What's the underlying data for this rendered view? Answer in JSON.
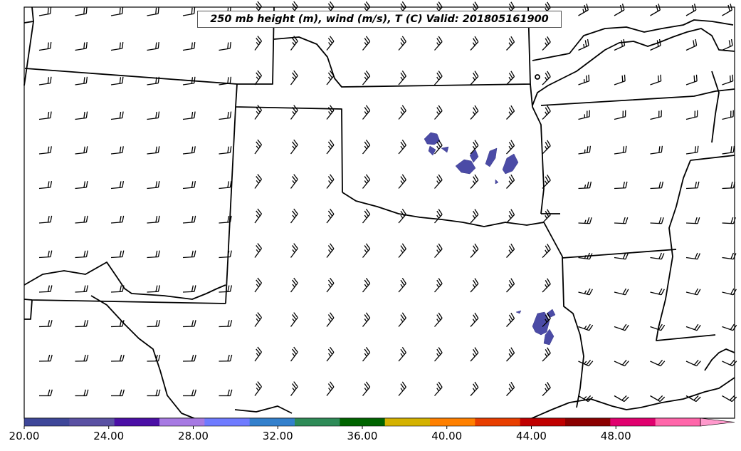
{
  "title": "250 mb height (m), wind (m/s), T (C) Valid: 201805161900",
  "colorbar": {
    "ticks": [
      "20.00",
      "24.00",
      "28.00",
      "32.00",
      "36.00",
      "40.00",
      "44.00",
      "48.00"
    ],
    "tick_values": [
      20,
      24,
      28,
      32,
      36,
      40,
      44,
      48
    ],
    "min": 20,
    "max": 52,
    "step": 2,
    "extend": "max",
    "colors": [
      "#3e4799",
      "#5a51a3",
      "#4b0fa6",
      "#a77ae3",
      "#6f7bff",
      "#3380cc",
      "#2e8b57",
      "#006400",
      "#d4b200",
      "#ff8000",
      "#e83e00",
      "#c00000",
      "#8b0000",
      "#e0006e",
      "#ff66aa",
      "#ff99cc"
    ]
  },
  "colors": {
    "fill": "#4b4ba6",
    "border": "#000000",
    "background": "#ffffff"
  }
}
